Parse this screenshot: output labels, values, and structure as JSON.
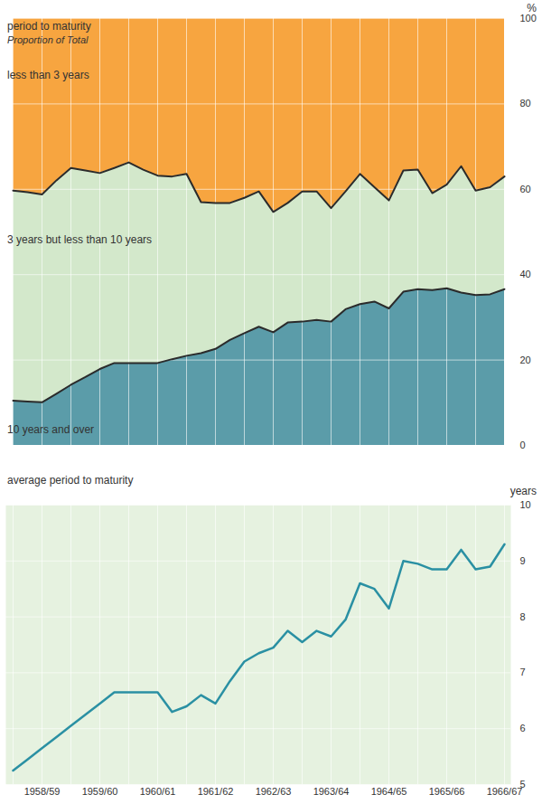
{
  "chart_data": [
    {
      "type": "area",
      "title": "period to maturity",
      "subtitle": "Proportion of Total",
      "y_label": "%",
      "stacked": true,
      "grid": true,
      "tick_labels": "y",
      "categories": [
        null,
        null,
        "1958/59",
        null,
        null,
        null,
        "1959/60",
        null,
        null,
        null,
        "1960/61",
        null,
        null,
        null,
        "1961/62",
        null,
        null,
        null,
        "1962/63",
        null,
        null,
        null,
        "1963/64",
        null,
        null,
        null,
        "1964/65",
        null,
        null,
        null,
        "1965/66",
        null,
        null,
        null,
        "1966/67"
      ],
      "series": [
        {
          "name": "10 years and over",
          "color": "#5b9ca9",
          "values": [
            10.5,
            10.3,
            10.1,
            12.1,
            14.2,
            16.0,
            17.9,
            19.3,
            19.3,
            19.3,
            19.3,
            20.2,
            21.0,
            21.6,
            22.6,
            24.7,
            26.3,
            27.8,
            26.5,
            28.8,
            29.0,
            29.4,
            29.0,
            31.9,
            33.1,
            33.7,
            32.1,
            36.0,
            36.6,
            36.4,
            36.8,
            35.8,
            35.2,
            35.4,
            36.6
          ]
        },
        {
          "name": "3 years but less than 10 years",
          "color": "#d3e8cb",
          "values": [
            49.2,
            49.0,
            48.7,
            50.0,
            50.8,
            48.4,
            45.9,
            45.7,
            47.0,
            45.3,
            43.9,
            42.8,
            42.6,
            35.4,
            34.2,
            32.1,
            31.7,
            31.7,
            28.2,
            28.0,
            30.5,
            30.1,
            26.6,
            27.6,
            30.5,
            26.8,
            25.3,
            28.4,
            28.0,
            22.7,
            24.3,
            29.6,
            24.5,
            25.1,
            26.4
          ]
        },
        {
          "name": "less than 3 years",
          "color": "#f7a540",
          "values": [
            40.3,
            40.7,
            41.2,
            37.9,
            35.0,
            35.6,
            36.2,
            35.0,
            33.7,
            35.4,
            36.8,
            37.0,
            36.4,
            43.0,
            43.2,
            43.2,
            42.0,
            40.5,
            45.3,
            43.2,
            40.5,
            40.5,
            44.4,
            40.5,
            36.4,
            39.5,
            42.6,
            35.6,
            35.4,
            40.9,
            38.9,
            34.6,
            40.3,
            39.5,
            37.0
          ]
        }
      ],
      "ylim": [
        0,
        100
      ],
      "yticks": [
        0,
        20,
        40,
        60,
        80,
        100
      ]
    },
    {
      "type": "line",
      "title": "average period to maturity",
      "y_label": "years",
      "grid": true,
      "categories": [
        null,
        null,
        "1958/59",
        null,
        null,
        null,
        "1959/60",
        null,
        null,
        null,
        "1960/61",
        null,
        null,
        null,
        "1961/62",
        null,
        null,
        null,
        "1962/63",
        null,
        null,
        null,
        "1963/64",
        null,
        null,
        null,
        "1964/65",
        null,
        null,
        null,
        "1965/66",
        null,
        null,
        null,
        "1966/67"
      ],
      "values": [
        5.25,
        5.45,
        5.65,
        5.85,
        6.05,
        6.25,
        6.45,
        6.65,
        6.65,
        6.65,
        6.65,
        6.3,
        6.4,
        6.6,
        6.45,
        6.85,
        7.2,
        7.35,
        7.45,
        7.75,
        7.55,
        7.75,
        7.65,
        7.95,
        8.6,
        8.5,
        8.15,
        9.0,
        8.95,
        8.85,
        8.85,
        9.2,
        8.85,
        8.9,
        9.3
      ],
      "color": "#2a90a3",
      "ylim": [
        5,
        10
      ],
      "yticks": [
        5,
        6,
        7,
        8,
        9,
        10
      ]
    }
  ]
}
